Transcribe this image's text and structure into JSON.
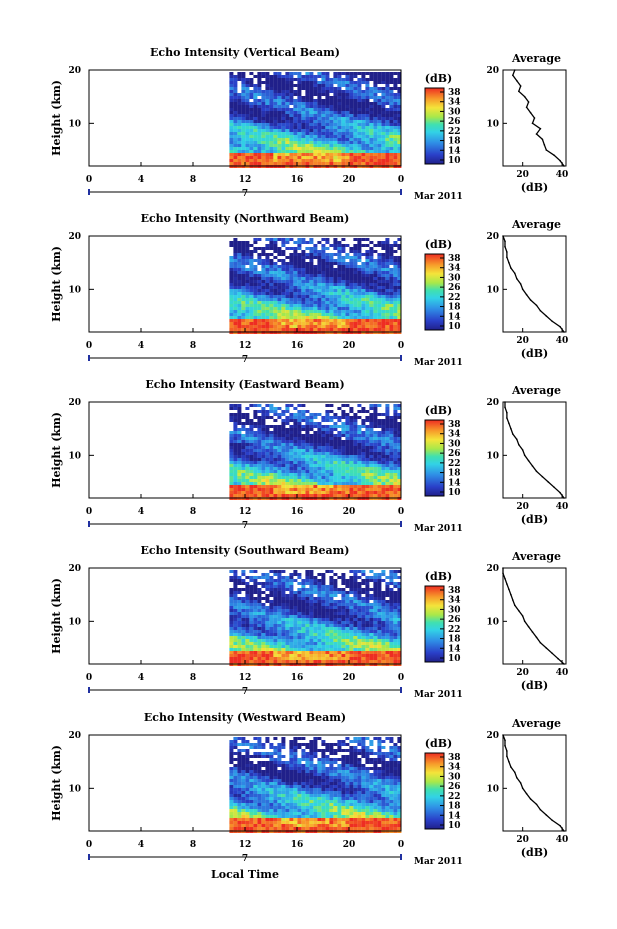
{
  "chart_data": [
    {
      "type": "heatmap",
      "title": "Echo Intensity (Vertical Beam)",
      "ylabel": "Height (km)",
      "xlabel": "",
      "date_label": "7",
      "month_label": "Mar 2011",
      "x_ticks": [
        "0",
        "4",
        "8",
        "12",
        "16",
        "20",
        "0"
      ],
      "xlim": [
        0,
        24
      ],
      "y_ticks": [
        "20",
        "10"
      ],
      "ylim": [
        2,
        20
      ],
      "data_start_hour": 10.8,
      "colorbar": {
        "unit": "(dB)",
        "ticks": [
          "38",
          "34",
          "30",
          "26",
          "22",
          "18",
          "14",
          "10"
        ],
        "range": [
          10,
          40
        ]
      },
      "profile": {
        "title": "Average",
        "xlabel": "(dB)",
        "x_ticks": [
          "20",
          "40"
        ],
        "y_ticks": [
          "20",
          "10"
        ],
        "xlim": [
          10,
          42
        ],
        "ylim": [
          2,
          20
        ],
        "heights_km": [
          20,
          19,
          18,
          17,
          16,
          15,
          14,
          13,
          12,
          11,
          10,
          9,
          8,
          7,
          6,
          5,
          4,
          3,
          2
        ],
        "values_db": [
          16,
          15,
          17,
          19,
          18,
          21,
          23,
          22,
          24,
          26,
          25,
          29,
          27,
          30,
          31,
          32,
          36,
          39,
          41
        ]
      }
    },
    {
      "type": "heatmap",
      "title": "Echo Intensity (Northward Beam)",
      "ylabel": "Height (km)",
      "xlabel": "",
      "date_label": "7",
      "month_label": "Mar 2011",
      "x_ticks": [
        "0",
        "4",
        "8",
        "12",
        "16",
        "20",
        "0"
      ],
      "xlim": [
        0,
        24
      ],
      "y_ticks": [
        "20",
        "10"
      ],
      "ylim": [
        2,
        20
      ],
      "data_start_hour": 10.8,
      "colorbar": {
        "unit": "(dB)",
        "ticks": [
          "38",
          "34",
          "30",
          "26",
          "22",
          "18",
          "14",
          "10"
        ],
        "range": [
          10,
          40
        ]
      },
      "profile": {
        "title": "Average",
        "xlabel": "(dB)",
        "x_ticks": [
          "20",
          "40"
        ],
        "y_ticks": [
          "20",
          "10"
        ],
        "xlim": [
          10,
          42
        ],
        "ylim": [
          2,
          20
        ],
        "heights_km": [
          20,
          19,
          18,
          17,
          16,
          15,
          14,
          13,
          12,
          11,
          10,
          9,
          8,
          7,
          6,
          5,
          4,
          3,
          2
        ],
        "values_db": [
          10,
          11,
          11,
          12,
          12,
          13,
          14,
          16,
          17,
          19,
          20,
          22,
          24,
          27,
          29,
          32,
          35,
          39,
          41
        ]
      }
    },
    {
      "type": "heatmap",
      "title": "Echo Intensity (Eastward Beam)",
      "ylabel": "Height (km)",
      "xlabel": "",
      "date_label": "7",
      "month_label": "Mar 2011",
      "x_ticks": [
        "0",
        "4",
        "8",
        "12",
        "16",
        "20",
        "0"
      ],
      "xlim": [
        0,
        24
      ],
      "y_ticks": [
        "20",
        "10"
      ],
      "ylim": [
        2,
        20
      ],
      "data_start_hour": 10.8,
      "colorbar": {
        "unit": "(dB)",
        "ticks": [
          "38",
          "34",
          "30",
          "26",
          "22",
          "18",
          "14",
          "10"
        ],
        "range": [
          10,
          40
        ]
      },
      "profile": {
        "title": "Average",
        "xlabel": "(dB)",
        "x_ticks": [
          "20",
          "40"
        ],
        "y_ticks": [
          "20",
          "10"
        ],
        "xlim": [
          10,
          42
        ],
        "ylim": [
          2,
          20
        ],
        "heights_km": [
          20,
          19,
          18,
          17,
          16,
          15,
          14,
          13,
          12,
          11,
          10,
          9,
          8,
          7,
          6,
          5,
          4,
          3,
          2
        ],
        "values_db": [
          11,
          11,
          12,
          12,
          13,
          14,
          15,
          17,
          18,
          20,
          21,
          23,
          25,
          27,
          30,
          33,
          36,
          39,
          41
        ]
      }
    },
    {
      "type": "heatmap",
      "title": "Echo Intensity (Southward Beam)",
      "ylabel": "Height (km)",
      "xlabel": "",
      "date_label": "7",
      "month_label": "Mar 2011",
      "x_ticks": [
        "0",
        "4",
        "8",
        "12",
        "16",
        "20",
        "0"
      ],
      "xlim": [
        0,
        24
      ],
      "y_ticks": [
        "20",
        "10"
      ],
      "ylim": [
        2,
        20
      ],
      "data_start_hour": 10.8,
      "colorbar": {
        "unit": "(dB)",
        "ticks": [
          "38",
          "34",
          "30",
          "26",
          "22",
          "18",
          "14",
          "10"
        ],
        "range": [
          10,
          40
        ]
      },
      "profile": {
        "title": "Average",
        "xlabel": "(dB)",
        "x_ticks": [
          "20",
          "40"
        ],
        "y_ticks": [
          "20",
          "10"
        ],
        "xlim": [
          10,
          42
        ],
        "ylim": [
          2,
          20
        ],
        "heights_km": [
          20,
          19,
          18,
          17,
          16,
          15,
          14,
          13,
          12,
          11,
          10,
          9,
          8,
          7,
          6,
          5,
          4,
          3,
          2
        ],
        "values_db": [
          10,
          10,
          11,
          12,
          13,
          14,
          15,
          16,
          18,
          20,
          21,
          23,
          25,
          27,
          29,
          32,
          35,
          38,
          41
        ]
      }
    },
    {
      "type": "heatmap",
      "title": "Echo Intensity (Westward Beam)",
      "ylabel": "Height (km)",
      "xlabel": "Local Time",
      "date_label": "7",
      "month_label": "Mar 2011",
      "x_ticks": [
        "0",
        "4",
        "8",
        "12",
        "16",
        "20",
        "0"
      ],
      "xlim": [
        0,
        24
      ],
      "y_ticks": [
        "20",
        "10"
      ],
      "ylim": [
        2,
        20
      ],
      "data_start_hour": 10.8,
      "colorbar": {
        "unit": "(dB)",
        "ticks": [
          "38",
          "34",
          "30",
          "26",
          "22",
          "18",
          "14",
          "10"
        ],
        "range": [
          10,
          40
        ]
      },
      "profile": {
        "title": "Average",
        "xlabel": "(dB)",
        "x_ticks": [
          "20",
          "40"
        ],
        "y_ticks": [
          "20",
          "10"
        ],
        "xlim": [
          10,
          42
        ],
        "ylim": [
          2,
          20
        ],
        "heights_km": [
          20,
          19,
          18,
          17,
          16,
          15,
          14,
          13,
          12,
          11,
          10,
          9,
          8,
          7,
          6,
          5,
          4,
          3,
          2
        ],
        "values_db": [
          10,
          11,
          11,
          12,
          12,
          13,
          14,
          16,
          17,
          19,
          20,
          22,
          24,
          27,
          29,
          32,
          35,
          39,
          41
        ]
      }
    }
  ]
}
